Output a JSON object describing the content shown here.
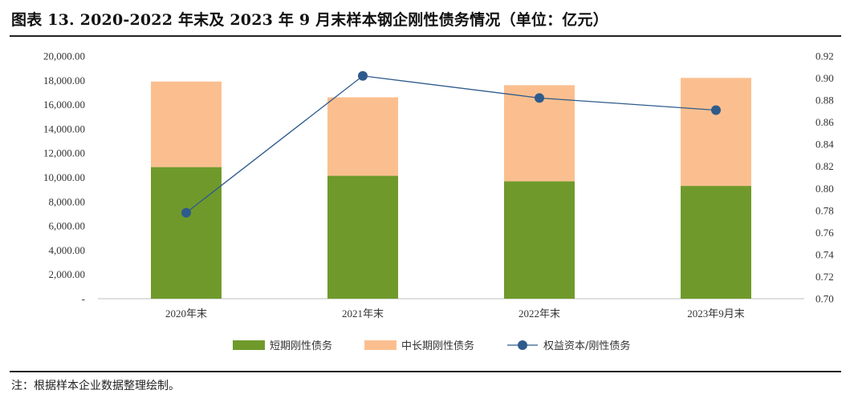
{
  "title": "图表 13. 2020-2022 年末及 2023 年 9 月末样本钢企刚性债务情况（单位：亿元）",
  "note": "注：根据样本企业数据整理绘制。",
  "chart_data": {
    "type": "bar",
    "stacked": true,
    "categories": [
      "2020年末",
      "2021年末",
      "2022年末",
      "2023年9月末"
    ],
    "series": [
      {
        "name": "短期刚性债务",
        "type": "bar",
        "axis": "left",
        "color": "#6f9a2b",
        "values": [
          10850,
          10130,
          9680,
          9300
        ]
      },
      {
        "name": "中长期刚性债务",
        "type": "bar",
        "axis": "left",
        "color": "#fbbf8f",
        "values": [
          7050,
          6470,
          7920,
          8900
        ]
      },
      {
        "name": "权益资本/刚性债务",
        "type": "line",
        "axis": "right",
        "color": "#2e5b8c",
        "values": [
          0.778,
          0.902,
          0.882,
          0.871
        ]
      }
    ],
    "y_left": {
      "min": 0,
      "max": 20000,
      "step": 2000,
      "ticks": [
        "-",
        "2,000.00",
        "4,000.00",
        "6,000.00",
        "8,000.00",
        "10,000.00",
        "12,000.00",
        "14,000.00",
        "16,000.00",
        "18,000.00",
        "20,000.00"
      ]
    },
    "y_right": {
      "min": 0.7,
      "max": 0.92,
      "step": 0.02,
      "ticks": [
        "0.70",
        "0.72",
        "0.74",
        "0.76",
        "0.78",
        "0.80",
        "0.82",
        "0.84",
        "0.86",
        "0.88",
        "0.90",
        "0.92"
      ]
    },
    "grid": false,
    "legend_position": "bottom"
  }
}
